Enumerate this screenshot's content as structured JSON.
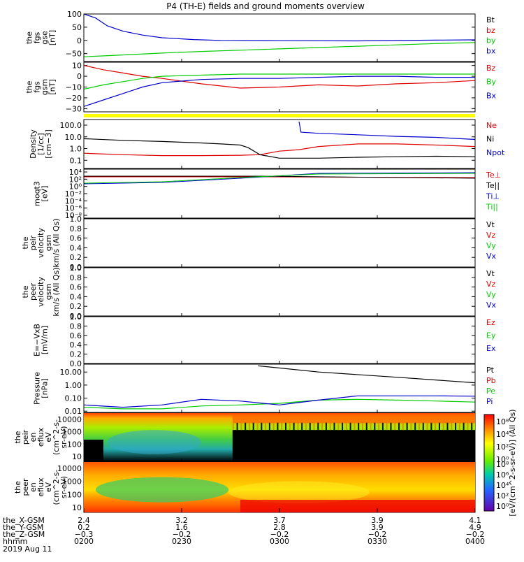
{
  "title": "P4 (TH-E) fields and ground moments overview",
  "colors": {
    "black": "#000000",
    "red": "#dd0000",
    "green": "#00cc00",
    "blue": "#0000cc",
    "yellow": "#ffff00"
  },
  "chart_data": [
    {
      "type": "line",
      "panel": "fgs_gse_top",
      "ylabel": [
        "the",
        "fgs",
        "gse",
        "[nT]"
      ],
      "ylim": [
        -80,
        100
      ],
      "yticks": [
        "100",
        "50",
        "0",
        "−50"
      ],
      "ytick_values": [
        100,
        50,
        0,
        -50
      ],
      "legend": [
        {
          "name": "Bt",
          "color": "black"
        },
        {
          "name": "bz",
          "color": "red"
        },
        {
          "name": "by",
          "color": "green"
        },
        {
          "name": "bx",
          "color": "blue"
        }
      ],
      "series": [
        {
          "name": "bx",
          "color": "blue",
          "x": [
            0,
            0.03,
            0.06,
            0.1,
            0.15,
            0.2,
            0.28,
            0.35,
            0.5,
            0.7,
            0.9,
            1.0
          ],
          "y": [
            100,
            85,
            55,
            35,
            20,
            10,
            3,
            0,
            -1,
            -2,
            1,
            2
          ]
        },
        {
          "name": "by",
          "color": "green",
          "x": [
            0,
            0.1,
            0.2,
            0.3,
            0.4,
            0.5,
            0.6,
            0.7,
            0.8,
            0.9,
            1.0
          ],
          "y": [
            -62,
            -55,
            -48,
            -42,
            -37,
            -32,
            -27,
            -22,
            -17,
            -12,
            -8
          ]
        }
      ]
    },
    {
      "type": "line",
      "panel": "fgs_gsm",
      "ylabel": [
        "the",
        "fgs",
        "gsm",
        "[nT]"
      ],
      "ylim": [
        -33,
        13
      ],
      "yticks": [
        "10",
        "0",
        "−10",
        "−20",
        "−30"
      ],
      "ytick_values": [
        10,
        0,
        -10,
        -20,
        -30
      ],
      "legend": [
        {
          "name": "Bz",
          "color": "red"
        },
        {
          "name": "By",
          "color": "green"
        },
        {
          "name": "Bx",
          "color": "blue"
        }
      ],
      "series": [
        {
          "name": "Bz",
          "color": "red",
          "x": [
            0,
            0.05,
            0.1,
            0.15,
            0.2,
            0.3,
            0.4,
            0.5,
            0.6,
            0.7,
            0.8,
            0.9,
            1.0
          ],
          "y": [
            10,
            6,
            3,
            0,
            -2,
            -7,
            -11,
            -10,
            -8,
            -9,
            -7,
            -6,
            -4
          ]
        },
        {
          "name": "By",
          "color": "green",
          "x": [
            0,
            0.05,
            0.1,
            0.15,
            0.2,
            0.3,
            0.4,
            0.5,
            0.6,
            0.7,
            0.8,
            0.9,
            1.0
          ],
          "y": [
            -12,
            -8,
            -5,
            -2,
            0,
            1,
            2,
            2,
            2,
            2,
            2,
            2,
            2
          ]
        },
        {
          "name": "Bx",
          "color": "blue",
          "x": [
            0,
            0.05,
            0.1,
            0.15,
            0.2,
            0.3,
            0.4,
            0.5,
            0.6,
            0.7,
            0.8,
            0.9,
            1.0
          ],
          "y": [
            -28,
            -22,
            -16,
            -10,
            -6,
            -3,
            -2,
            -2,
            -1,
            0,
            0,
            -1,
            -1
          ]
        }
      ]
    },
    {
      "type": "line",
      "panel": "density",
      "ylabel": [
        "Density",
        "[1/cc]",
        "[cm−3]"
      ],
      "yscale": "log",
      "ylim": [
        0.02,
        300
      ],
      "yticks": [
        "100.0",
        "10.0",
        "1.0",
        "0.1"
      ],
      "ytick_values": [
        100,
        10,
        1,
        0.1
      ],
      "legend": [
        {
          "name": "Ne",
          "color": "red"
        },
        {
          "name": "Ni",
          "color": "black"
        },
        {
          "name": "Npot",
          "color": "blue"
        }
      ],
      "series": [
        {
          "name": "Ne",
          "color": "red",
          "x": [
            0,
            0.1,
            0.2,
            0.3,
            0.4,
            0.45,
            0.5,
            0.55,
            0.6,
            0.7,
            0.8,
            0.9,
            1.0
          ],
          "y": [
            0.4,
            0.3,
            0.25,
            0.25,
            0.27,
            0.3,
            0.6,
            0.8,
            1.5,
            2.5,
            2.5,
            2.0,
            1.5
          ]
        },
        {
          "name": "Ni",
          "color": "black",
          "x": [
            0,
            0.1,
            0.2,
            0.3,
            0.35,
            0.4,
            0.42,
            0.45,
            0.5,
            0.6,
            0.7,
            0.8,
            0.9,
            1.0
          ],
          "y": [
            7,
            5,
            4,
            3,
            2.5,
            2,
            1.2,
            0.3,
            0.15,
            0.15,
            0.18,
            0.2,
            0.22,
            0.2
          ]
        },
        {
          "name": "Npot",
          "color": "blue",
          "x": [
            0.55,
            0.555,
            0.6,
            0.7,
            0.8,
            0.9,
            1.0
          ],
          "y": [
            200,
            25,
            20,
            15,
            11,
            9,
            6
          ]
        }
      ]
    },
    {
      "type": "line",
      "panel": "temperature",
      "ylabel": [
        "moqt3",
        "[eV]"
      ],
      "yscale": "log",
      "yticks": [
        "10⁴",
        "10²",
        "10⁰",
        "10⁻²",
        "10⁻⁴",
        "10⁻⁶",
        "10⁻⁸"
      ],
      "legend": [
        {
          "name": "Te⊥",
          "color": "red"
        },
        {
          "name": "Te||",
          "color": "black"
        },
        {
          "name": "Ti⊥",
          "color": "blue"
        },
        {
          "name": "Ti||",
          "color": "green"
        }
      ]
    },
    {
      "type": "line",
      "panel": "peir_velocity",
      "ylabel": [
        "the",
        "peir",
        "velocity",
        "gsm",
        "km/s (All Qs)"
      ],
      "ylim": [
        0,
        1
      ],
      "yticks": [
        "1.0",
        "0.8",
        "0.6",
        "0.4",
        "0.2",
        "0.0"
      ],
      "ytick_values": [
        1.0,
        0.8,
        0.6,
        0.4,
        0.2,
        0.0
      ],
      "legend": [
        {
          "name": "Vt",
          "color": "black"
        },
        {
          "name": "Vz",
          "color": "red"
        },
        {
          "name": "Vy",
          "color": "green"
        },
        {
          "name": "Vx",
          "color": "blue"
        }
      ]
    },
    {
      "type": "line",
      "panel": "peer_velocity",
      "ylabel": [
        "the",
        "peer",
        "velocity",
        "gsm",
        "km/s (All Qs)"
      ],
      "ylim": [
        0,
        1
      ],
      "yticks": [
        "1.0",
        "0.8",
        "0.6",
        "0.4",
        "0.2",
        "0.0"
      ],
      "ytick_values": [
        1.0,
        0.8,
        0.6,
        0.4,
        0.2,
        0.0
      ],
      "legend": [
        {
          "name": "Vt",
          "color": "black"
        },
        {
          "name": "Vz",
          "color": "red"
        },
        {
          "name": "Vy",
          "color": "green"
        },
        {
          "name": "Vx",
          "color": "blue"
        }
      ]
    },
    {
      "type": "line",
      "panel": "efield",
      "ylabel": [
        "E=−VxB",
        "[mV/m]"
      ],
      "ylim": [
        0,
        1
      ],
      "yticks": [
        "1.0",
        "0.8",
        "0.6",
        "0.4",
        "0.2",
        "0.0"
      ],
      "ytick_values": [
        1.0,
        0.8,
        0.6,
        0.4,
        0.2,
        0.0
      ],
      "legend": [
        {
          "name": "Ez",
          "color": "red"
        },
        {
          "name": "Ey",
          "color": "green"
        },
        {
          "name": "Ex",
          "color": "blue"
        }
      ]
    },
    {
      "type": "line",
      "panel": "pressure",
      "ylabel": [
        "Pressure",
        "[nPa]"
      ],
      "yscale": "log",
      "ylim": [
        0.008,
        40
      ],
      "yticks": [
        "10.00",
        "1.00",
        "0.10",
        "0.01"
      ],
      "ytick_values": [
        10,
        1,
        0.1,
        0.01
      ],
      "legend": [
        {
          "name": "Pt",
          "color": "black"
        },
        {
          "name": "Pb",
          "color": "red"
        },
        {
          "name": "Pe",
          "color": "green"
        },
        {
          "name": "Pi",
          "color": "blue"
        }
      ],
      "series": [
        {
          "name": "Pt",
          "color": "black",
          "x": [
            0.445,
            0.6,
            0.8,
            1.0
          ],
          "y": [
            30,
            10,
            4,
            1.5
          ]
        },
        {
          "name": "Pe",
          "color": "green",
          "x": [
            0,
            0.1,
            0.2,
            0.3,
            0.4,
            0.5,
            0.6,
            0.7,
            0.8,
            0.9,
            1.0
          ],
          "y": [
            0.02,
            0.015,
            0.015,
            0.025,
            0.03,
            0.04,
            0.07,
            0.08,
            0.07,
            0.06,
            0.05
          ]
        },
        {
          "name": "Pi",
          "color": "blue",
          "x": [
            0,
            0.1,
            0.2,
            0.3,
            0.4,
            0.5,
            0.6,
            0.7,
            0.8,
            0.9,
            1.0
          ],
          "y": [
            0.03,
            0.02,
            0.03,
            0.08,
            0.06,
            0.03,
            0.07,
            0.15,
            0.15,
            0.15,
            0.14
          ]
        }
      ]
    },
    {
      "type": "heatmap",
      "panel": "peir_spectrogram",
      "ylabel": [
        "the",
        "peir",
        "en",
        "eflux",
        "eV",
        "(cm^2-s-",
        "sr-eV)"
      ],
      "yscale": "log",
      "yticks": [
        "10000",
        "1000",
        "100",
        "10"
      ]
    },
    {
      "type": "heatmap",
      "panel": "peer_spectrogram",
      "ylabel": [
        "the",
        "peer",
        "en",
        "eflux",
        "eV",
        "(cm^2-s-",
        "sr-eV)"
      ],
      "yscale": "log",
      "yticks": [
        "10000",
        "1000",
        "100",
        "10"
      ]
    }
  ],
  "colorbar": {
    "label": "[eV/(cm^2-s-sr-eV)] (All Qs)",
    "ticks_top": [
      "10⁸",
      "10⁴",
      "10²",
      "10⁰"
    ],
    "ticks_bottom": [
      "10⁸",
      "10⁶",
      "10⁴",
      "10²",
      "10⁰"
    ]
  },
  "xaxis": {
    "row_labels": [
      "the_X-GSM",
      "the_Y-GSM",
      "the_Z-GSM",
      "hhmm",
      "2019 Aug 11"
    ],
    "ticks": [
      {
        "x": "2.4",
        "y": "0.2",
        "z": "−0.3",
        "t": "0200"
      },
      {
        "x": "3.2",
        "y": "1.6",
        "z": "−0.2",
        "t": "0230"
      },
      {
        "x": "3.7",
        "y": "2.8",
        "z": "−0.2",
        "t": "0300"
      },
      {
        "x": "3.9",
        "y": "3.9",
        "z": "−0.2",
        "t": "0330"
      },
      {
        "x": "4.1",
        "y": "4.9",
        "z": "−0.2",
        "t": "0400"
      }
    ]
  }
}
